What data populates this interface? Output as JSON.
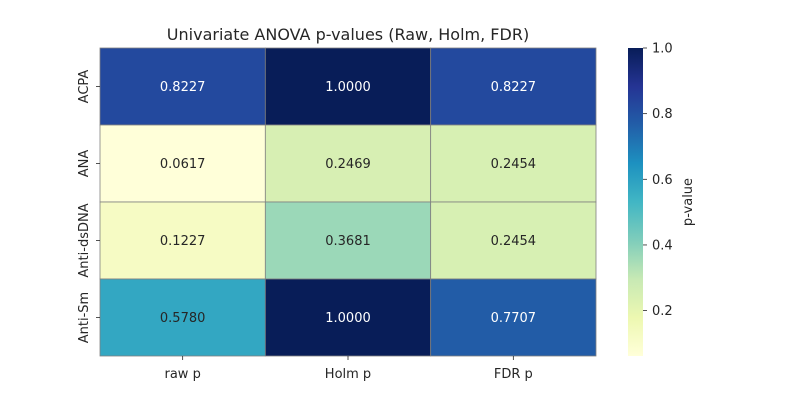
{
  "chart_data": {
    "type": "heatmap",
    "title": "Univariate ANOVA p-values (Raw, Holm, FDR)",
    "xlabel": "",
    "ylabel": "",
    "columns": [
      "raw p",
      "Holm p",
      "FDR p"
    ],
    "rows": [
      "ACPA",
      "ANA",
      "Anti-dsDNA",
      "Anti-Sm"
    ],
    "values": [
      [
        0.8227,
        1.0,
        0.8227
      ],
      [
        0.0617,
        0.2469,
        0.2454
      ],
      [
        0.1227,
        0.3681,
        0.2454
      ],
      [
        0.578,
        1.0,
        0.7707
      ]
    ],
    "cell_labels": [
      [
        "0.8227",
        "1.0000",
        "0.8227"
      ],
      [
        "0.0617",
        "0.2469",
        "0.2454"
      ],
      [
        "0.1227",
        "0.3681",
        "0.2454"
      ],
      [
        "0.5780",
        "1.0000",
        "0.7707"
      ]
    ],
    "colorscale": "YlGnBu",
    "color_range": [
      0.0617,
      1.0
    ],
    "colorbar": {
      "label": "p-value",
      "ticks": [
        0.2,
        0.4,
        0.6,
        0.8,
        1.0
      ],
      "tick_labels": [
        "0.2",
        "0.4",
        "0.6",
        "0.8",
        "1.0"
      ]
    },
    "cell_borders": true,
    "grid": false
  }
}
